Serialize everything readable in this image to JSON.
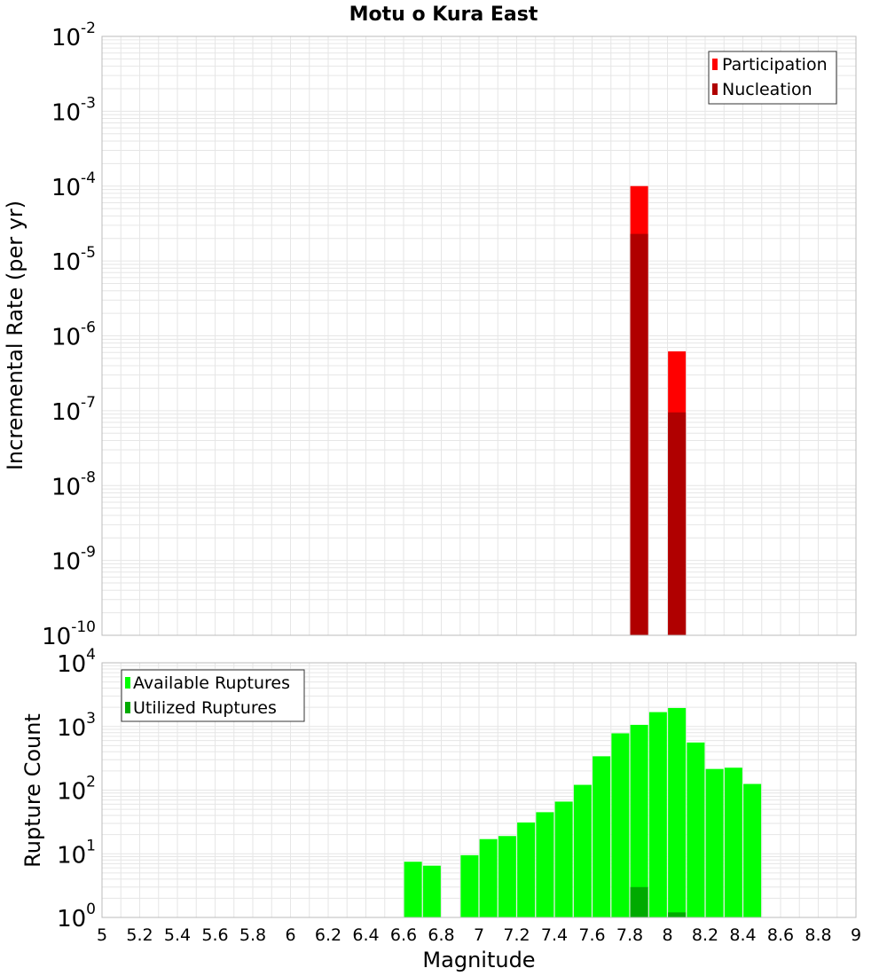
{
  "chart_data": [
    {
      "type": "bar",
      "title": "Motu o Kura East",
      "xlabel": "",
      "ylabel": "Incremental Rate (per yr)",
      "yscale": "log",
      "ylim_exponents": [
        -10,
        -2
      ],
      "xlim": [
        5,
        9
      ],
      "legend": {
        "placement": "top-right"
      },
      "series": [
        {
          "name": "Participation",
          "color": "#ff0000",
          "points": [
            [
              7.85,
              0.0001
            ],
            [
              8.05,
              6.2e-07
            ]
          ]
        },
        {
          "name": "Nucleation",
          "color": "#b00000",
          "points": [
            [
              7.85,
              2.3e-05
            ],
            [
              8.05,
              9.5e-08
            ]
          ]
        }
      ]
    },
    {
      "type": "bar",
      "title": "",
      "xlabel": "Magnitude",
      "ylabel": "Rupture Count",
      "yscale": "log",
      "ylim_exponents": [
        0,
        4
      ],
      "xlim": [
        5,
        9
      ],
      "legend": {
        "placement": "top-left"
      },
      "series": [
        {
          "name": "Available Ruptures",
          "color": "#00ff00",
          "points": [
            [
              6.65,
              7.5
            ],
            [
              6.75,
              6.5
            ],
            [
              6.95,
              9.5
            ],
            [
              7.05,
              17
            ],
            [
              7.15,
              19
            ],
            [
              7.25,
              31
            ],
            [
              7.35,
              45
            ],
            [
              7.45,
              66
            ],
            [
              7.55,
              121
            ],
            [
              7.65,
              340
            ],
            [
              7.75,
              780
            ],
            [
              7.85,
              1060
            ],
            [
              7.95,
              1680
            ],
            [
              8.05,
              1950
            ],
            [
              8.15,
              560
            ],
            [
              8.25,
              215
            ],
            [
              8.35,
              225
            ],
            [
              8.45,
              125
            ]
          ]
        },
        {
          "name": "Utilized Ruptures",
          "color": "#00aa00",
          "points": [
            [
              7.85,
              3
            ],
            [
              8.05,
              1.2
            ]
          ]
        }
      ]
    }
  ],
  "x_ticks": [
    "5",
    "5.2",
    "5.4",
    "5.6",
    "5.8",
    "6",
    "6.2",
    "6.4",
    "6.6",
    "6.8",
    "7",
    "7.2",
    "7.4",
    "7.6",
    "7.8",
    "8",
    "8.2",
    "8.4",
    "8.6",
    "8.8",
    "9"
  ],
  "top_tick_exponents": [
    "-2",
    "-3",
    "-4",
    "-5",
    "-6",
    "-7",
    "-8",
    "-9",
    "-10"
  ],
  "bottom_tick_exponents": [
    "4",
    "3",
    "2",
    "1",
    "0"
  ],
  "tick_base": "10",
  "colors": {
    "grid": "#e6e6e6",
    "frame": "#bbbbbb"
  }
}
